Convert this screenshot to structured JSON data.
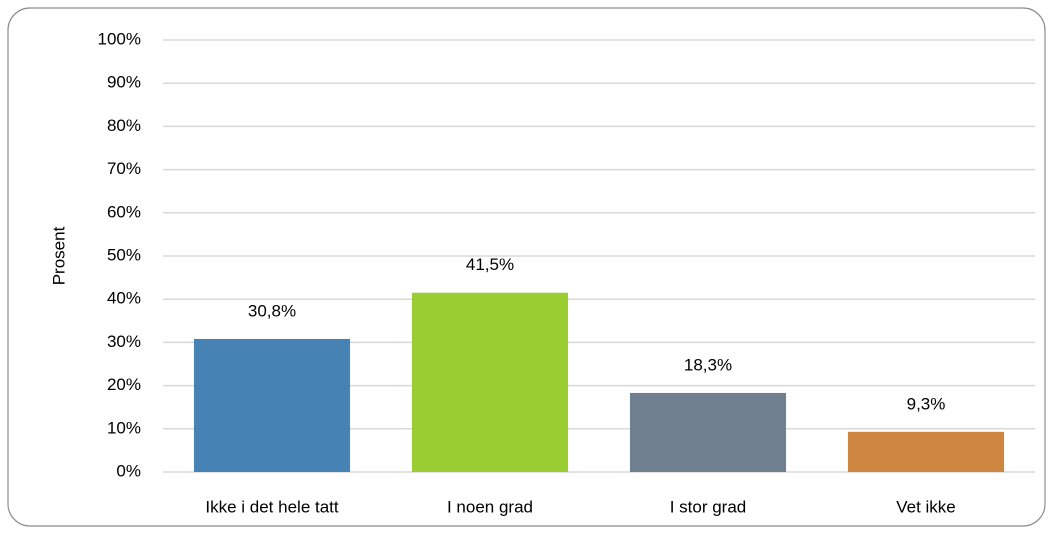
{
  "chart_data": {
    "type": "bar",
    "y_label": "Prosent",
    "categories": [
      "Ikke i det hele tatt",
      "I noen grad",
      "I stor grad",
      "Vet ikke"
    ],
    "values": [
      30.8,
      41.5,
      18.3,
      9.3
    ],
    "value_labels": [
      "30,8%",
      "41,5%",
      "18,3%",
      "9,3%"
    ],
    "colors": [
      "#4682b4",
      "#9acd32",
      "#708090",
      "#cd853f"
    ],
    "ylim": [
      0,
      100
    ],
    "yticks": [
      {
        "value": 0,
        "label": "0%"
      },
      {
        "value": 10,
        "label": "10%"
      },
      {
        "value": 20,
        "label": "20%"
      },
      {
        "value": 30,
        "label": "30%"
      },
      {
        "value": 40,
        "label": "40%"
      },
      {
        "value": 50,
        "label": "50%"
      },
      {
        "value": 60,
        "label": "60%"
      },
      {
        "value": 70,
        "label": "70%"
      },
      {
        "value": 80,
        "label": "80%"
      },
      {
        "value": 90,
        "label": "90%"
      },
      {
        "value": 100,
        "label": "100%"
      }
    ],
    "grid": true
  }
}
